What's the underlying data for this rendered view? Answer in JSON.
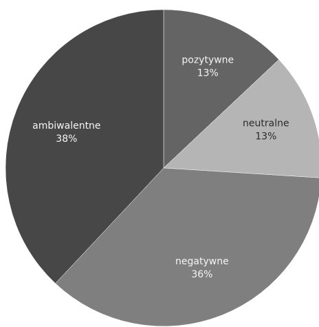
{
  "chart_data": {
    "type": "pie",
    "title": "",
    "slices": [
      {
        "label": "pozytywne",
        "value": 13,
        "display": "13%",
        "color": "#646464",
        "label_color": "#f4f4f4"
      },
      {
        "label": "neutralne",
        "value": 13,
        "display": "13%",
        "color": "#b5b5b5",
        "label_color": "#2b2b2b"
      },
      {
        "label": "negatywne",
        "value": 36,
        "display": "36%",
        "color": "#7f7f7f",
        "label_color": "#f4f4f4"
      },
      {
        "label": "ambiwalentne",
        "value": 38,
        "display": "38%",
        "color": "#474747",
        "label_color": "#f4f4f4"
      }
    ]
  }
}
